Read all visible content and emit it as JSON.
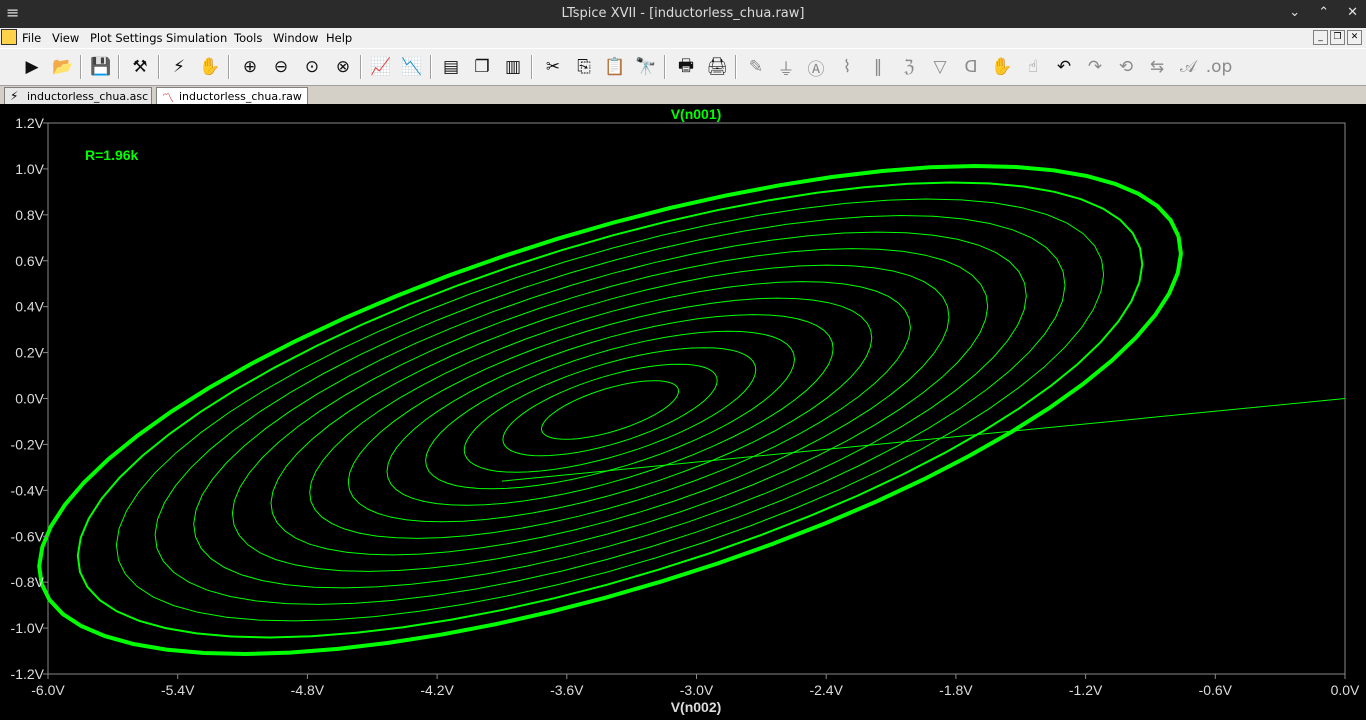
{
  "window": {
    "title": "LTspice XVII - [inductorless_chua.raw]",
    "controls": [
      "minimize",
      "maximize",
      "close"
    ]
  },
  "menu": [
    "File",
    "View",
    "Plot Settings",
    "Simulation",
    "Tools",
    "Window",
    "Help"
  ],
  "toolbar": {
    "icons": [
      "run-icon",
      "open-icon",
      "save-icon",
      "control-panel-icon",
      "probe-icon",
      "pan-hand-icon",
      "zoom-in-icon",
      "zoom-out-icon",
      "zoom-fit-icon",
      "zoom-cancel-icon",
      "autorange-icon",
      "add-trace-icon",
      "tile-horizontal-icon",
      "cascade-icon",
      "tile-vertical-icon",
      "cut-icon",
      "copy-icon",
      "paste-icon",
      "find-icon",
      "print-preview-icon",
      "print-icon",
      "wire-icon",
      "ground-icon",
      "label-icon",
      "resistor-icon",
      "capacitor-icon",
      "inductor-icon",
      "diode-icon",
      "component-icon",
      "move-icon",
      "drag-icon",
      "undo-icon",
      "redo-icon",
      "rotate-icon",
      "mirror-icon",
      "text-icon",
      "spice-directive-icon"
    ]
  },
  "tabs": [
    {
      "label": "inductorless_chua.asc",
      "active": false,
      "icon": "schematic-icon"
    },
    {
      "label": "inductorless_chua.raw",
      "active": true,
      "icon": "waveform-icon"
    }
  ],
  "chart_data": {
    "type": "line",
    "title": "V(n001)",
    "xlabel": "V(n002)",
    "ylabel": "",
    "annotation": "R=1.96k",
    "xlim": [
      -6.0,
      0.0
    ],
    "ylim": [
      -1.2,
      1.2
    ],
    "xticks": [
      "-6.0V",
      "-5.4V",
      "-4.8V",
      "-4.2V",
      "-3.6V",
      "-3.0V",
      "-2.4V",
      "-1.8V",
      "-1.2V",
      "-0.6V",
      "0.0V"
    ],
    "yticks": [
      "1.2V",
      "1.0V",
      "0.8V",
      "0.6V",
      "0.4V",
      "0.2V",
      "0.0V",
      "-0.2V",
      "-0.4V",
      "-0.6V",
      "-0.8V",
      "-1.0V",
      "-1.2V"
    ],
    "trace_color": "#00ff00",
    "background": "#000000",
    "series": [
      {
        "style": "spiral",
        "center": [
          -3.4,
          -0.05
        ],
        "outer_semi_axis_major_V": 2.75,
        "outer_semi_axis_minor_V": 0.78,
        "rotation_deg": 17,
        "loops": 13,
        "inner_scale": 0.12
      },
      {
        "style": "segment",
        "x": [
          -3.9,
          0.0
        ],
        "y": [
          -0.36,
          0.0
        ]
      }
    ]
  }
}
